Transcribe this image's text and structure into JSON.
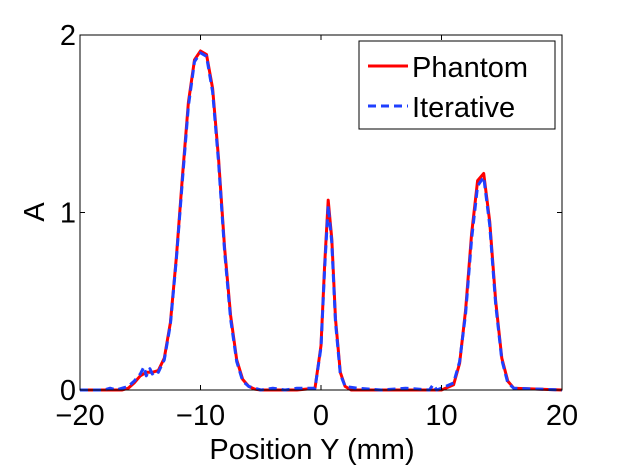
{
  "chart_data": {
    "type": "line",
    "title": "",
    "xlabel": "Position Y (mm)",
    "ylabel": "A",
    "xlim": [
      -20,
      20
    ],
    "ylim": [
      0,
      2
    ],
    "xticks": [
      -20,
      -10,
      0,
      10,
      20
    ],
    "xtick_labels": [
      "−20",
      "−10",
      "0",
      "10",
      "20"
    ],
    "yticks": [
      0,
      1,
      2
    ],
    "ytick_labels": [
      "0",
      "1",
      "2"
    ],
    "grid": false,
    "legend_position": "top-right",
    "series": [
      {
        "name": "Phantom",
        "color": "#ff0000",
        "style": "solid",
        "x": [
          -20,
          -16.5,
          -16,
          -15.5,
          -15,
          -14.5,
          -14,
          -13.5,
          -13,
          -12.5,
          -12,
          -11.5,
          -11,
          -10.5,
          -10,
          -9.5,
          -9,
          -8.5,
          -8,
          -7.5,
          -7,
          -6.5,
          -6,
          -5.5,
          -5,
          -2,
          -0.5,
          0,
          0.3,
          0.6,
          0.9,
          1.2,
          1.6,
          2,
          2.5,
          10,
          11,
          11.5,
          12,
          12.5,
          13,
          13.5,
          14,
          14.5,
          15,
          15.5,
          16,
          20
        ],
        "y": [
          0,
          0,
          0.01,
          0.04,
          0.08,
          0.1,
          0.1,
          0.11,
          0.18,
          0.38,
          0.75,
          1.2,
          1.62,
          1.86,
          1.91,
          1.89,
          1.7,
          1.3,
          0.8,
          0.42,
          0.17,
          0.06,
          0.02,
          0.005,
          0,
          0,
          0.01,
          0.25,
          0.7,
          1.07,
          0.85,
          0.4,
          0.1,
          0.02,
          0,
          0,
          0.03,
          0.15,
          0.45,
          0.88,
          1.18,
          1.22,
          0.95,
          0.5,
          0.18,
          0.05,
          0.01,
          0
        ]
      },
      {
        "name": "Iterative",
        "color": "#1f3fff",
        "style": "dashed",
        "x": [
          -20,
          -18,
          -17.5,
          -17,
          -16.5,
          -16,
          -15.5,
          -15,
          -14.7,
          -14.5,
          -14.2,
          -14,
          -13.7,
          -13.5,
          -13,
          -12.5,
          -12,
          -11.5,
          -11,
          -10.5,
          -10,
          -9.5,
          -9,
          -8.5,
          -8,
          -7.5,
          -7,
          -6.5,
          -6,
          -5.5,
          -5,
          -4,
          -3,
          -2,
          -0.5,
          0,
          0.3,
          0.6,
          0.9,
          1.2,
          1.6,
          2,
          3,
          5,
          7,
          9,
          9.3,
          9.6,
          10,
          11,
          11.5,
          12,
          12.5,
          13,
          13.5,
          14,
          14.5,
          15,
          15.5,
          16,
          20
        ],
        "y": [
          0,
          0,
          0.01,
          0,
          0.01,
          0.02,
          0.05,
          0.09,
          0.13,
          0.08,
          0.12,
          0.09,
          0.11,
          0.1,
          0.17,
          0.37,
          0.74,
          1.18,
          1.6,
          1.85,
          1.9,
          1.88,
          1.68,
          1.28,
          0.78,
          0.4,
          0.16,
          0.05,
          0.02,
          0.01,
          0,
          0.01,
          0,
          0.01,
          0.01,
          0.24,
          0.68,
          1.04,
          0.83,
          0.38,
          0.09,
          0.02,
          0.01,
          0,
          0.01,
          0,
          0.03,
          0,
          0.01,
          0.04,
          0.16,
          0.43,
          0.85,
          1.15,
          1.2,
          0.93,
          0.48,
          0.17,
          0.04,
          0.01,
          0
        ]
      }
    ]
  }
}
